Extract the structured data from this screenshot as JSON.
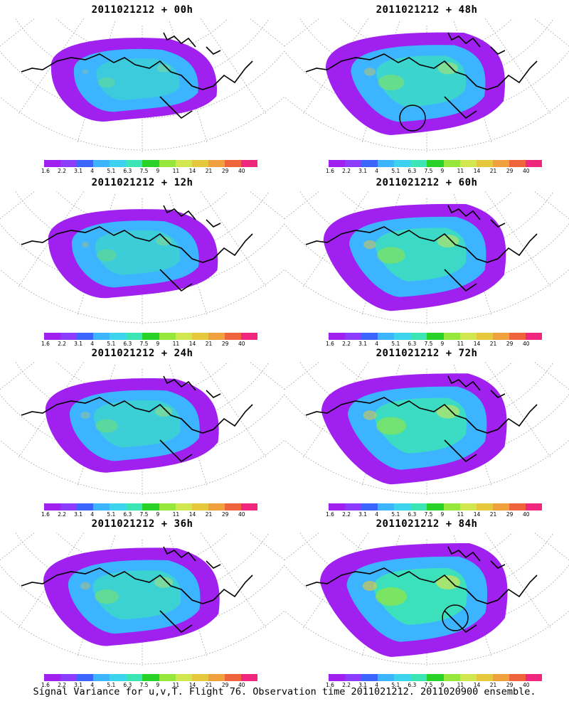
{
  "panels": [
    {
      "title": "2011021212 + 00h",
      "spread": 0.45,
      "intensity": 0.25,
      "circle": false
    },
    {
      "title": "2011021212 + 48h",
      "spread": 0.8,
      "intensity": 0.45,
      "circle": true
    },
    {
      "title": "2011021212 + 12h",
      "spread": 0.55,
      "intensity": 0.3,
      "circle": false
    },
    {
      "title": "2011021212 + 60h",
      "spread": 0.88,
      "intensity": 0.55,
      "circle": false
    },
    {
      "title": "2011021212 + 24h",
      "spread": 0.65,
      "intensity": 0.35,
      "circle": false
    },
    {
      "title": "2011021212 + 72h",
      "spread": 0.95,
      "intensity": 0.6,
      "circle": false
    },
    {
      "title": "2011021212 + 36h",
      "spread": 0.72,
      "intensity": 0.4,
      "circle": false
    },
    {
      "title": "2011021212 + 84h",
      "spread": 1.0,
      "intensity": 0.7,
      "circle": true
    }
  ],
  "colorbar": {
    "labels": [
      "1.6",
      "2.2",
      "3.1",
      "4",
      "5.1",
      "6.3",
      "7.5",
      "9",
      "11",
      "14",
      "21",
      "29",
      "40"
    ],
    "colors": [
      "#a020f0",
      "#8c3cff",
      "#3c64ff",
      "#3cb4ff",
      "#3cd2f0",
      "#3ce6b4",
      "#28d228",
      "#96e63c",
      "#d2e650",
      "#e6c83c",
      "#f0a03c",
      "#f0643c",
      "#f0287d"
    ]
  },
  "caption": "Signal Variance for u,v,T. Flight 76. Observation time 2011021212. 2011020900 ensemble."
}
